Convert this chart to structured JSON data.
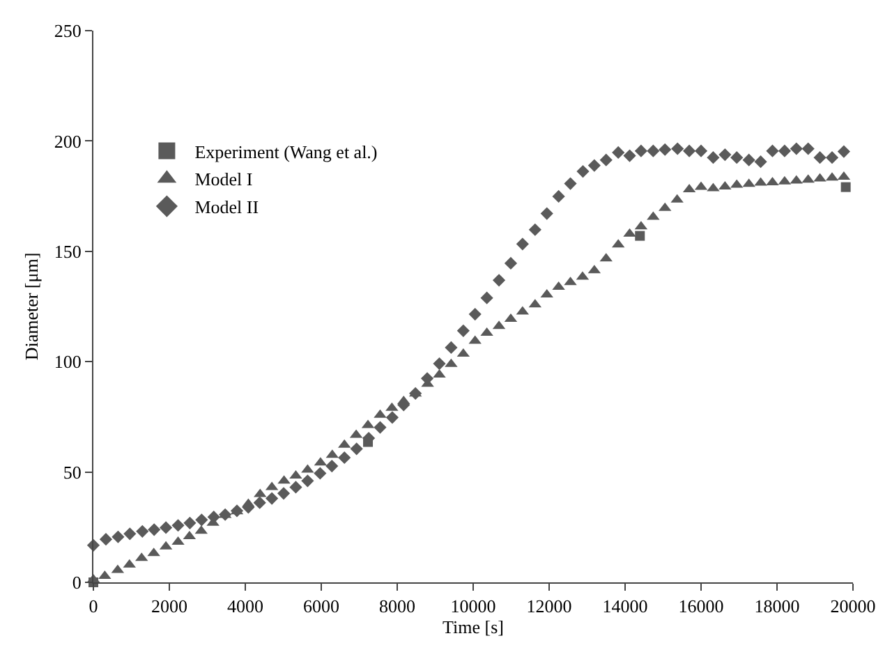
{
  "chart_data": {
    "type": "scatter",
    "xlabel": "Time [s]",
    "ylabel": "Diameter [μm]",
    "xlim": [
      0,
      20000
    ],
    "xticks": [
      0,
      2000,
      4000,
      6000,
      8000,
      10000,
      12000,
      14000,
      16000,
      18000,
      20000
    ],
    "ylim": [
      0,
      250
    ],
    "yticks": [
      0,
      50,
      100,
      150,
      200,
      250
    ],
    "legend": "top left",
    "series": [
      {
        "name": "Experiment (Wang et al.)",
        "color": "#5a5a5a",
        "marker": "square",
        "x": [
          0,
          7230,
          14390,
          19810
        ],
        "values": [
          0,
          63.6,
          157,
          179.1
        ]
      },
      {
        "name": "Model I",
        "color": "#5a5a5a",
        "marker": "triangle",
        "x": [
          0,
          300,
          640,
          950,
          1270,
          1590,
          1910,
          2230,
          2530,
          2840,
          3150,
          3470,
          3780,
          4080,
          4390,
          4700,
          5020,
          5330,
          5640,
          5980,
          6290,
          6610,
          6920,
          7230,
          7550,
          7860,
          8170,
          8480,
          8800,
          9110,
          9420,
          9740,
          10050,
          10360,
          10680,
          10990,
          11300,
          11630,
          11940,
          12250,
          12560,
          12880,
          13190,
          13500,
          13820,
          14120,
          14420,
          14740,
          15050,
          15370,
          15690,
          16000,
          16320,
          16630,
          16940,
          17260,
          17570,
          17880,
          18200,
          18510,
          18820,
          19130,
          19450,
          19760
        ],
        "values": [
          1.3,
          2.8,
          5.5,
          8,
          11,
          13.2,
          16.2,
          18.3,
          20.8,
          23.3,
          26.9,
          30.5,
          32.1,
          35.5,
          39.9,
          43.1,
          46,
          48.3,
          51,
          54.2,
          57.7,
          62.3,
          66.8,
          71.2,
          75.8,
          79,
          82.1,
          85.5,
          89.9,
          94.1,
          98.9,
          103.5,
          109.4,
          113,
          116.1,
          119.3,
          122.6,
          125.9,
          130.4,
          133.8,
          136,
          138.4,
          141.3,
          146.7,
          153,
          157.9,
          161.2,
          165.6,
          169.6,
          173.4,
          178,
          179.1,
          178.5,
          179.3,
          180.1,
          180.5,
          181,
          181.2,
          181.6,
          182,
          182.4,
          182.9,
          183.3,
          183.7
        ]
      },
      {
        "name": "Model II",
        "color": "#5a5a5a",
        "marker": "diamond",
        "x": [
          0,
          330,
          650,
          960,
          1290,
          1600,
          1910,
          2230,
          2540,
          2850,
          3170,
          3470,
          3780,
          4080,
          4380,
          4700,
          5010,
          5330,
          5640,
          5970,
          6280,
          6610,
          6930,
          7250,
          7550,
          7870,
          8170,
          8480,
          8790,
          9110,
          9420,
          9740,
          10050,
          10360,
          10680,
          10990,
          11300,
          11630,
          11940,
          12250,
          12560,
          12890,
          13190,
          13500,
          13820,
          14120,
          14420,
          14740,
          15050,
          15380,
          15690,
          16000,
          16320,
          16630,
          16940,
          17260,
          17570,
          17880,
          18200,
          18510,
          18820,
          19130,
          19450,
          19760
        ],
        "values": [
          16.8,
          19.5,
          20.6,
          22,
          23.1,
          23.9,
          24.8,
          25.8,
          26.9,
          28.3,
          29.6,
          30.7,
          32.4,
          34,
          36.1,
          38,
          40.3,
          43.1,
          46,
          49.4,
          52.7,
          56.5,
          60.5,
          65.3,
          70.2,
          74.7,
          80.4,
          85.6,
          92.4,
          99.1,
          106.4,
          114,
          121.5,
          128.9,
          136.9,
          144.6,
          153.3,
          159.8,
          167.1,
          174.9,
          180.7,
          186.2,
          188.9,
          191.4,
          194.8,
          193.3,
          195.5,
          195.5,
          196.1,
          196.5,
          195.5,
          195.5,
          192.5,
          193.8,
          192.5,
          191.4,
          190.6,
          195.5,
          195.5,
          196.5,
          196.5,
          192.5,
          192.5,
          195.2
        ]
      }
    ]
  }
}
